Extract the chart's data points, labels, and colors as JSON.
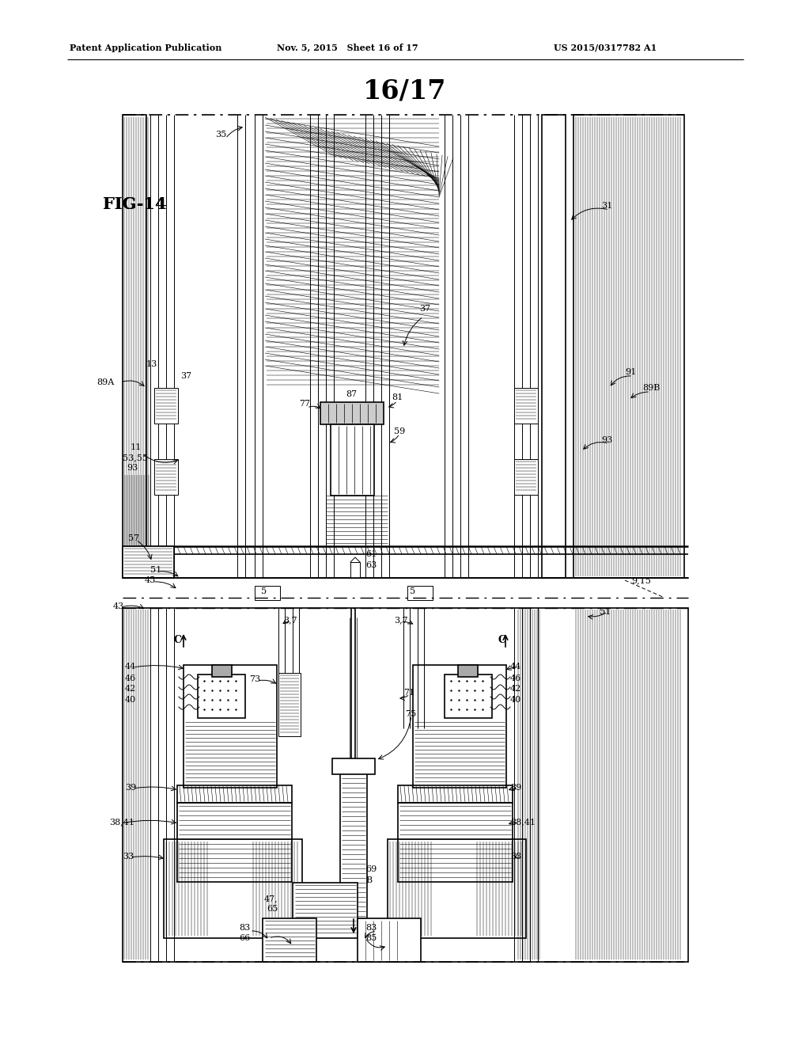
{
  "bg_color": "#ffffff",
  "title": "16/17",
  "fig_label": "FIG-14",
  "header_left": "Patent Application Publication",
  "header_mid": "Nov. 5, 2015   Sheet 16 of 17",
  "header_right": "US 2015/0317782 A1"
}
